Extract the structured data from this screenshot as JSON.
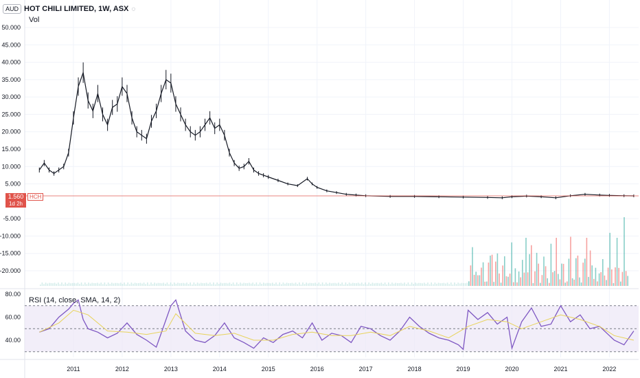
{
  "header": {
    "currency": "AUD",
    "title": "HOT CHILI LIMITED, 1W, ASX",
    "vol_label": "Vol",
    "rsi_label": "RSI (14, close, SMA, 14, 2)"
  },
  "price_badge": {
    "price": "1.560",
    "ticker": "HCH",
    "time": "1d 2h"
  },
  "colors": {
    "candle": "#131722",
    "price_line": "#e0534a",
    "rsi": "#7e57c2",
    "rsi_ma": "#e8d35a",
    "rsi_band": "#ede7f6",
    "vol_up": "#26a69a",
    "vol_down": "#ef5350",
    "grid": "#f0f3fa"
  },
  "chart_data": [
    {
      "type": "line",
      "title": "HOT CHILI LIMITED, 1W, ASX",
      "y_ticks": [
        "50.000",
        "45.000",
        "40.000",
        "35.000",
        "30.000",
        "25.000",
        "20.000",
        "15.000",
        "10.000",
        "5.000",
        "-5.000",
        "-10.000",
        "-15.000",
        "-20.000"
      ],
      "y_tick_values": [
        50,
        45,
        40,
        35,
        30,
        25,
        20,
        15,
        10,
        5,
        -5,
        -10,
        -15,
        -20
      ],
      "x_ticks": [
        "2011",
        "2012",
        "2013",
        "2014",
        "2015",
        "2016",
        "2017",
        "2018",
        "2019",
        "2020",
        "2021",
        "2022"
      ],
      "x_tick_values": [
        2011,
        2012,
        2013,
        2014,
        2015,
        2016,
        2017,
        2018,
        2019,
        2020,
        2021,
        2022
      ],
      "xlim": [
        2010.0,
        2022.6
      ],
      "ylim": [
        -24,
        54
      ],
      "current_price": 1.56,
      "series": [
        {
          "x": [
            2010.3,
            2010.4,
            2010.5,
            2010.6,
            2010.7,
            2010.8,
            2010.9,
            2011.0,
            2011.1,
            2011.2,
            2011.3,
            2011.4,
            2011.5,
            2011.6,
            2011.7,
            2011.8,
            2011.9,
            2012.0,
            2012.1,
            2012.2,
            2012.3,
            2012.4,
            2012.5,
            2012.6,
            2012.7,
            2012.8,
            2012.9,
            2013.0,
            2013.1,
            2013.2,
            2013.3,
            2013.4,
            2013.5,
            2013.6,
            2013.7,
            2013.8,
            2013.9,
            2014.0,
            2014.1,
            2014.2,
            2014.3,
            2014.4,
            2014.5,
            2014.6,
            2014.7,
            2014.8,
            2014.9,
            2015.0,
            2015.2,
            2015.4,
            2015.6,
            2015.8,
            2015.9,
            2016.0,
            2016.2,
            2016.4,
            2016.6,
            2016.8,
            2017.0,
            2017.5,
            2018.0,
            2018.5,
            2019.0,
            2019.5,
            2019.8,
            2020.0,
            2020.3,
            2020.6,
            2020.9,
            2021.2,
            2021.5,
            2021.8,
            2022.0,
            2022.3,
            2022.5
          ],
          "values": [
            9,
            11,
            9,
            8,
            9,
            10,
            14,
            24,
            33,
            37,
            29,
            26,
            31,
            25,
            22,
            27,
            28,
            33,
            31,
            24,
            20,
            19,
            18,
            23,
            26,
            31,
            35,
            34,
            28,
            25,
            22,
            20,
            19,
            20,
            22,
            24,
            21,
            22,
            19,
            14,
            11,
            9.5,
            10,
            11.5,
            9,
            8,
            7.5,
            7,
            6,
            5,
            4.5,
            6.5,
            5,
            4,
            3,
            2.5,
            2,
            1.8,
            1.6,
            1.4,
            1.4,
            1.3,
            1.2,
            1.1,
            1.0,
            1.3,
            1.5,
            1.3,
            1.0,
            1.6,
            2.0,
            1.8,
            1.7,
            1.6,
            1.56
          ]
        }
      ]
    },
    {
      "type": "line",
      "title": "RSI (14, close, SMA, 14, 2)",
      "y_ticks": [
        "80.00",
        "60.00",
        "40.00"
      ],
      "y_tick_values": [
        80,
        60,
        40
      ],
      "ylim": [
        26,
        82
      ],
      "band": [
        30,
        70
      ],
      "mid": 50,
      "series": [
        {
          "name": "RSI",
          "x": [
            2010.3,
            2010.5,
            2010.7,
            2010.9,
            2011.0,
            2011.1,
            2011.2,
            2011.3,
            2011.5,
            2011.7,
            2011.9,
            2012.1,
            2012.3,
            2012.5,
            2012.7,
            2012.9,
            2013.0,
            2013.1,
            2013.3,
            2013.5,
            2013.7,
            2013.9,
            2014.1,
            2014.3,
            2014.5,
            2014.7,
            2014.9,
            2015.1,
            2015.3,
            2015.5,
            2015.7,
            2015.9,
            2016.1,
            2016.3,
            2016.5,
            2016.7,
            2016.9,
            2017.1,
            2017.3,
            2017.5,
            2017.7,
            2017.9,
            2018.1,
            2018.3,
            2018.5,
            2018.7,
            2018.9,
            2019.0,
            2019.1,
            2019.3,
            2019.5,
            2019.7,
            2019.9,
            2020.0,
            2020.2,
            2020.4,
            2020.6,
            2020.8,
            2021.0,
            2021.2,
            2021.4,
            2021.6,
            2021.8,
            2022.0,
            2022.1,
            2022.3,
            2022.5
          ],
          "values": [
            47,
            50,
            60,
            67,
            72,
            75,
            58,
            50,
            47,
            42,
            46,
            55,
            45,
            40,
            34,
            58,
            70,
            75,
            48,
            40,
            38,
            44,
            55,
            42,
            38,
            33,
            42,
            38,
            45,
            48,
            42,
            55,
            40,
            46,
            44,
            38,
            52,
            50,
            44,
            40,
            48,
            60,
            52,
            46,
            42,
            40,
            36,
            32,
            66,
            58,
            64,
            54,
            60,
            33,
            56,
            68,
            52,
            54,
            70,
            56,
            62,
            50,
            52,
            44,
            40,
            36,
            48
          ]
        },
        {
          "name": "RSI-based MA",
          "x": [
            2010.3,
            2010.7,
            2011.0,
            2011.3,
            2011.7,
            2012.1,
            2012.5,
            2012.9,
            2013.1,
            2013.5,
            2013.9,
            2014.3,
            2014.7,
            2015.1,
            2015.5,
            2015.9,
            2016.3,
            2016.7,
            2017.1,
            2017.5,
            2017.9,
            2018.3,
            2018.7,
            2019.1,
            2019.5,
            2019.9,
            2020.2,
            2020.6,
            2021.0,
            2021.4,
            2021.8,
            2022.1,
            2022.5
          ],
          "values": [
            47,
            55,
            66,
            62,
            48,
            47,
            45,
            48,
            63,
            46,
            44,
            46,
            40,
            40,
            45,
            47,
            44,
            44,
            47,
            44,
            52,
            48,
            42,
            52,
            58,
            56,
            50,
            56,
            62,
            58,
            52,
            44,
            40
          ]
        }
      ]
    }
  ]
}
